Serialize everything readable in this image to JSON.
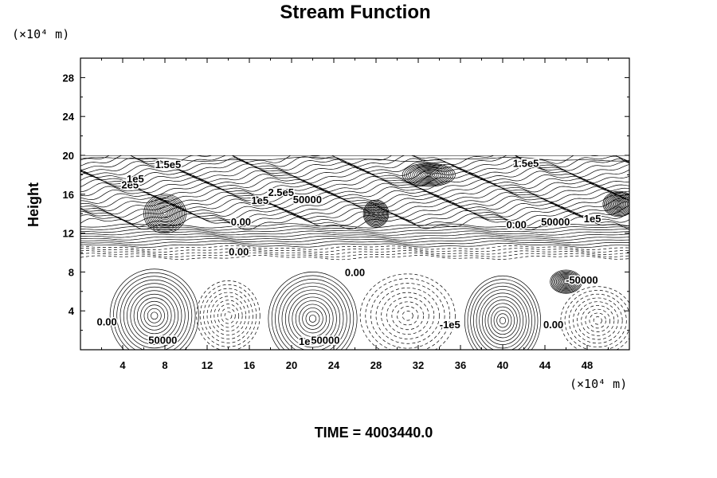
{
  "chart_data": {
    "type": "contour",
    "title": "Stream Function",
    "ylabel": "Height",
    "x_unit": "(×10⁴ m)",
    "y_unit": "(×10⁴ m)",
    "xlim": [
      0,
      52
    ],
    "ylim": [
      0,
      30
    ],
    "xticks": [
      "4",
      "8",
      "12",
      "16",
      "20",
      "24",
      "28",
      "32",
      "36",
      "40",
      "44",
      "48"
    ],
    "xtick_values": [
      4,
      8,
      12,
      16,
      20,
      24,
      28,
      32,
      36,
      40,
      44,
      48
    ],
    "yticks": [
      "4",
      "8",
      "12",
      "16",
      "20",
      "24",
      "28"
    ],
    "ytick_values": [
      4,
      8,
      12,
      16,
      20,
      24,
      28
    ],
    "data_top": 20,
    "footer": "TIME = 4003440.0",
    "eddies": [
      {
        "x": 7,
        "y": 3.5,
        "rx": 4.2,
        "ry": 4.8,
        "sign": 1
      },
      {
        "x": 22,
        "y": 3.2,
        "rx": 4.2,
        "ry": 4.8,
        "sign": 1
      },
      {
        "x": 40,
        "y": 3.0,
        "rx": 3.6,
        "ry": 4.6,
        "sign": 1
      },
      {
        "x": 14,
        "y": 3.5,
        "rx": 3.0,
        "ry": 3.6,
        "sign": -1
      },
      {
        "x": 31,
        "y": 3.5,
        "rx": 4.5,
        "ry": 4.3,
        "sign": -1
      },
      {
        "x": 49,
        "y": 3.0,
        "rx": 3.5,
        "ry": 3.5,
        "sign": -1
      },
      {
        "x": 46,
        "y": 7.0,
        "rx": 1.5,
        "ry": 1.2,
        "sign": 1
      },
      {
        "x": 8,
        "y": 14.0,
        "rx": 2.0,
        "ry": 2.0,
        "sign": 1
      },
      {
        "x": 33,
        "y": 18.0,
        "rx": 2.5,
        "ry": 1.2,
        "sign": 1
      },
      {
        "x": 28,
        "y": 14.0,
        "rx": 1.2,
        "ry": 1.4,
        "sign": 1
      },
      {
        "x": 51,
        "y": 15.0,
        "rx": 1.5,
        "ry": 1.3,
        "sign": 1
      }
    ],
    "contour_labels": [
      {
        "text": "1.5e5",
        "x": 8.3,
        "y": 18.7
      },
      {
        "text": "2e5",
        "x": 4.7,
        "y": 16.6
      },
      {
        "text": "1e5",
        "x": 5.2,
        "y": 17.2
      },
      {
        "text": "2.5e5",
        "x": 19.0,
        "y": 15.8
      },
      {
        "text": "1e5",
        "x": 17.0,
        "y": 15.0
      },
      {
        "text": "50000",
        "x": 21.5,
        "y": 15.1
      },
      {
        "text": "0.00",
        "x": 15.2,
        "y": 12.8
      },
      {
        "text": "0.00",
        "x": 15.0,
        "y": 9.7
      },
      {
        "text": "0.00",
        "x": 26.0,
        "y": 7.6
      },
      {
        "text": "0.00",
        "x": 41.3,
        "y": 12.5
      },
      {
        "text": "1.5e5",
        "x": 42.2,
        "y": 18.8
      },
      {
        "text": "50000",
        "x": 45.0,
        "y": 12.8
      },
      {
        "text": "1e5",
        "x": 48.5,
        "y": 13.1
      },
      {
        "text": "-50000",
        "x": 47.5,
        "y": 6.8
      },
      {
        "text": "0.00",
        "x": 2.5,
        "y": 2.5
      },
      {
        "text": "50000",
        "x": 7.8,
        "y": 0.6
      },
      {
        "text": "1e5",
        "x": 21.5,
        "y": 0.5
      },
      {
        "text": "50000",
        "x": 23.2,
        "y": 0.6
      },
      {
        "text": "-1e5",
        "x": 35.0,
        "y": 2.2
      },
      {
        "text": "0.00",
        "x": 44.8,
        "y": 2.2
      }
    ]
  }
}
